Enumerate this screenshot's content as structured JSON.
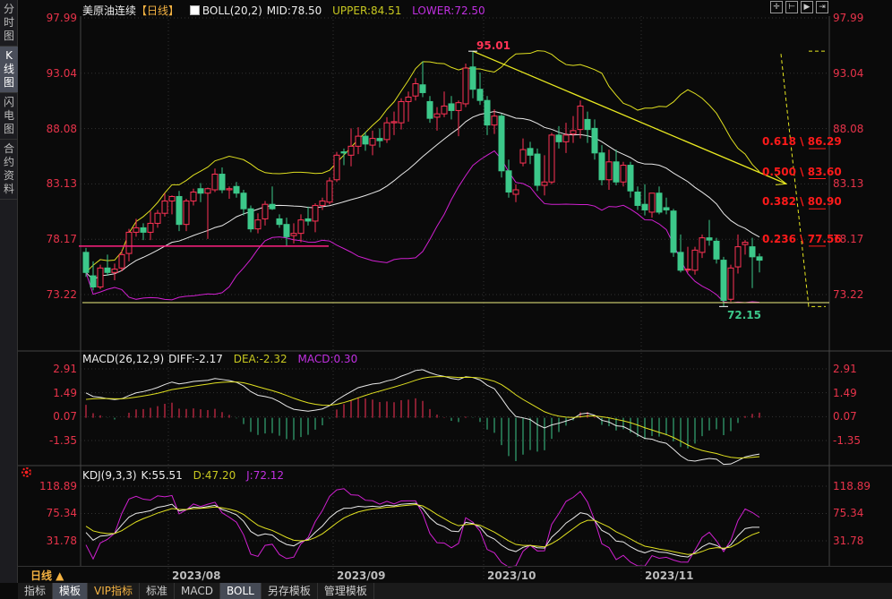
{
  "sidebar": {
    "items": [
      {
        "label": "分\n时\n图",
        "active": false
      },
      {
        "label": "K\n线\n图",
        "active": true
      },
      {
        "label": "闪\n电\n图",
        "active": false
      },
      {
        "label": "合\n约\n资\n料",
        "active": false
      }
    ]
  },
  "header": {
    "instrument": "美原油连续",
    "period": "【日线】",
    "boll": "BOLL(20,2)",
    "mid": "MID:78.50",
    "upper": "UPPER:84.51",
    "lower": "LOWER:72.50"
  },
  "toolbar": {
    "icons": [
      "crosshair-icon",
      "zoom-in-icon",
      "play-icon",
      "exit-icon"
    ]
  },
  "macd_header": {
    "name": "MACD(26,12,9)",
    "diff": "DIFF:-2.17",
    "dea": "DEA:-2.32",
    "macd": "MACD:0.30"
  },
  "kdj_header": {
    "name": "KDJ(9,3,3)",
    "k": "K:55.51",
    "d": "D:47.20",
    "j": "J:72.12"
  },
  "bottom": {
    "period": "日线 ▲"
  },
  "tabs": [
    {
      "label": "指标"
    },
    {
      "label": "模板",
      "active": true
    },
    {
      "label": "VIP指标",
      "vip": true
    },
    {
      "label": "标准"
    },
    {
      "label": "MACD"
    },
    {
      "label": "BOLL",
      "active": true
    },
    {
      "label": "另存模板"
    },
    {
      "label": "管理模板"
    }
  ],
  "colors": {
    "up": "#ff3355",
    "down": "#3cc88a",
    "mid": "#e8e8e8",
    "upper": "#e0e020",
    "lower": "#d020d0",
    "axis": "#e8334a",
    "fib": "#ff1a1a"
  },
  "chart_data": {
    "type": "candlestick",
    "price_ticks": [
      "97.99",
      "93.04",
      "88.08",
      "83.13",
      "78.17",
      "73.22"
    ],
    "macd_ticks": [
      "2.91",
      "1.49",
      "0.07",
      "-1.35"
    ],
    "kdj_ticks": [
      "118.89",
      "75.34",
      "31.78"
    ],
    "x_ticks": [
      {
        "label": "2023/08",
        "index": 12
      },
      {
        "label": "2023/09",
        "index": 35
      },
      {
        "label": "2023/10",
        "index": 56
      },
      {
        "label": "2023/11",
        "index": 78
      }
    ],
    "annotations": {
      "high": {
        "label": "95.01",
        "value": 95.01,
        "index": 54
      },
      "low": {
        "label": "72.15",
        "value": 72.15,
        "index": 89
      },
      "trend_end": 83.13,
      "support_line": 72.5,
      "pink_line": 77.56
    },
    "fib_levels": [
      {
        "ratio": "0.618",
        "price": "86.29"
      },
      {
        "ratio": "0.500",
        "price": "83.60"
      },
      {
        "ratio": "0.382",
        "price": "80.90"
      },
      {
        "ratio": "0.236",
        "price": "77.56"
      }
    ],
    "ohlc": [
      [
        77.0,
        77.4,
        74.8,
        75.2
      ],
      [
        74.9,
        76.2,
        73.6,
        73.9
      ],
      [
        73.9,
        75.9,
        73.7,
        75.6
      ],
      [
        75.6,
        76.8,
        74.9,
        75.2
      ],
      [
        75.2,
        76.0,
        74.5,
        75.5
      ],
      [
        75.6,
        77.2,
        75.3,
        76.8
      ],
      [
        76.9,
        79.1,
        76.2,
        78.8
      ],
      [
        78.8,
        80.0,
        78.4,
        79.2
      ],
      [
        79.2,
        79.6,
        78.1,
        78.8
      ],
      [
        78.8,
        80.7,
        78.1,
        79.6
      ],
      [
        79.6,
        80.8,
        79.2,
        80.5
      ],
      [
        80.5,
        82.3,
        80.2,
        81.6
      ],
      [
        81.6,
        82.1,
        80.4,
        82.0
      ],
      [
        82.0,
        82.5,
        78.9,
        79.5
      ],
      [
        79.5,
        81.8,
        78.9,
        81.6
      ],
      [
        81.6,
        82.7,
        81.2,
        82.4
      ],
      [
        82.7,
        83.2,
        81.5,
        82.3
      ],
      [
        82.3,
        82.8,
        78.2,
        82.7
      ],
      [
        82.6,
        84.5,
        82.4,
        84.0
      ],
      [
        84.0,
        84.6,
        82.3,
        82.6
      ],
      [
        82.6,
        82.9,
        81.8,
        82.7
      ],
      [
        82.9,
        83.3,
        81.9,
        82.3
      ],
      [
        82.3,
        82.6,
        80.3,
        80.9
      ],
      [
        80.9,
        81.2,
        78.8,
        79.1
      ],
      [
        79.1,
        80.5,
        78.7,
        79.9
      ],
      [
        80.0,
        81.6,
        79.4,
        81.3
      ],
      [
        81.3,
        82.9,
        80.8,
        80.9
      ],
      [
        80.0,
        80.4,
        79.2,
        79.5
      ],
      [
        79.5,
        80.1,
        77.6,
        78.4
      ],
      [
        78.5,
        79.6,
        77.8,
        78.7
      ],
      [
        78.7,
        80.4,
        77.9,
        79.9
      ],
      [
        80.0,
        81.1,
        79.4,
        79.8
      ],
      [
        79.8,
        81.4,
        78.8,
        81.2
      ],
      [
        81.2,
        81.9,
        80.8,
        81.6
      ],
      [
        81.5,
        83.7,
        81.3,
        83.4
      ],
      [
        83.5,
        86.0,
        83.3,
        85.7
      ],
      [
        86.0,
        86.3,
        84.8,
        85.9
      ],
      [
        85.7,
        88.1,
        84.7,
        86.5
      ],
      [
        86.5,
        88.2,
        85.8,
        87.4
      ],
      [
        87.4,
        87.8,
        86.1,
        86.7
      ],
      [
        86.6,
        87.9,
        85.7,
        87.2
      ],
      [
        87.2,
        88.1,
        86.4,
        87.0
      ],
      [
        87.1,
        89.1,
        86.8,
        88.6
      ],
      [
        88.6,
        89.6,
        87.5,
        88.7
      ],
      [
        88.6,
        90.8,
        88.0,
        90.5
      ],
      [
        90.5,
        91.4,
        88.7,
        90.9
      ],
      [
        91.0,
        92.6,
        90.6,
        92.1
      ],
      [
        92.0,
        94.1,
        90.9,
        91.3
      ],
      [
        90.5,
        91.0,
        88.6,
        89.0
      ],
      [
        89.1,
        90.0,
        87.9,
        89.4
      ],
      [
        89.4,
        91.4,
        89.1,
        90.1
      ],
      [
        90.3,
        91.0,
        88.9,
        89.7
      ],
      [
        89.7,
        90.6,
        87.4,
        90.4
      ],
      [
        90.3,
        93.9,
        90.0,
        93.5
      ],
      [
        93.6,
        95.01,
        90.8,
        91.6
      ],
      [
        91.6,
        93.1,
        90.2,
        90.6
      ],
      [
        90.6,
        91.0,
        87.5,
        88.4
      ],
      [
        88.4,
        89.8,
        87.6,
        89.2
      ],
      [
        89.2,
        89.4,
        83.7,
        84.3
      ],
      [
        84.3,
        85.3,
        81.9,
        82.4
      ],
      [
        82.2,
        83.1,
        81.5,
        82.6
      ],
      [
        85.0,
        87.2,
        84.7,
        86.2
      ],
      [
        86.3,
        86.9,
        84.9,
        85.7
      ],
      [
        85.8,
        86.3,
        82.5,
        83.0
      ],
      [
        83.0,
        85.7,
        82.1,
        83.3
      ],
      [
        83.3,
        87.7,
        83.1,
        87.5
      ],
      [
        87.5,
        88.3,
        86.3,
        86.9
      ],
      [
        86.9,
        88.6,
        85.9,
        87.5
      ],
      [
        87.6,
        89.2,
        86.8,
        87.9
      ],
      [
        88.0,
        90.6,
        87.2,
        90.1
      ],
      [
        88.9,
        89.6,
        86.8,
        88.0
      ],
      [
        88.1,
        88.9,
        85.3,
        85.9
      ],
      [
        85.9,
        86.6,
        83.0,
        83.5
      ],
      [
        83.5,
        86.2,
        82.6,
        85.1
      ],
      [
        85.1,
        86.2,
        83.0,
        83.3
      ],
      [
        83.3,
        85.1,
        82.9,
        84.8
      ],
      [
        84.8,
        85.1,
        81.9,
        82.5
      ],
      [
        82.4,
        82.9,
        80.8,
        81.2
      ],
      [
        81.3,
        83.1,
        80.3,
        80.8
      ],
      [
        80.6,
        82.3,
        80.1,
        82.3
      ],
      [
        82.3,
        82.9,
        80.4,
        80.6
      ],
      [
        81.0,
        81.9,
        80.4,
        80.8
      ],
      [
        80.7,
        80.9,
        76.6,
        77.0
      ],
      [
        77.0,
        78.6,
        75.2,
        75.4
      ],
      [
        75.5,
        77.5,
        75.2,
        75.5
      ],
      [
        75.4,
        77.5,
        75.0,
        77.2
      ],
      [
        77.0,
        78.6,
        76.5,
        78.3
      ],
      [
        78.3,
        79.9,
        77.6,
        78.1
      ],
      [
        78.0,
        78.3,
        76.0,
        76.4
      ],
      [
        76.3,
        76.6,
        72.15,
        72.7
      ],
      [
        72.8,
        75.9,
        72.6,
        75.6
      ],
      [
        75.7,
        78.6,
        75.1,
        77.5
      ],
      [
        77.7,
        78.1,
        76.8,
        77.9
      ],
      [
        77.5,
        78.3,
        73.8,
        76.6
      ],
      [
        76.6,
        76.9,
        75.2,
        76.3
      ]
    ]
  }
}
